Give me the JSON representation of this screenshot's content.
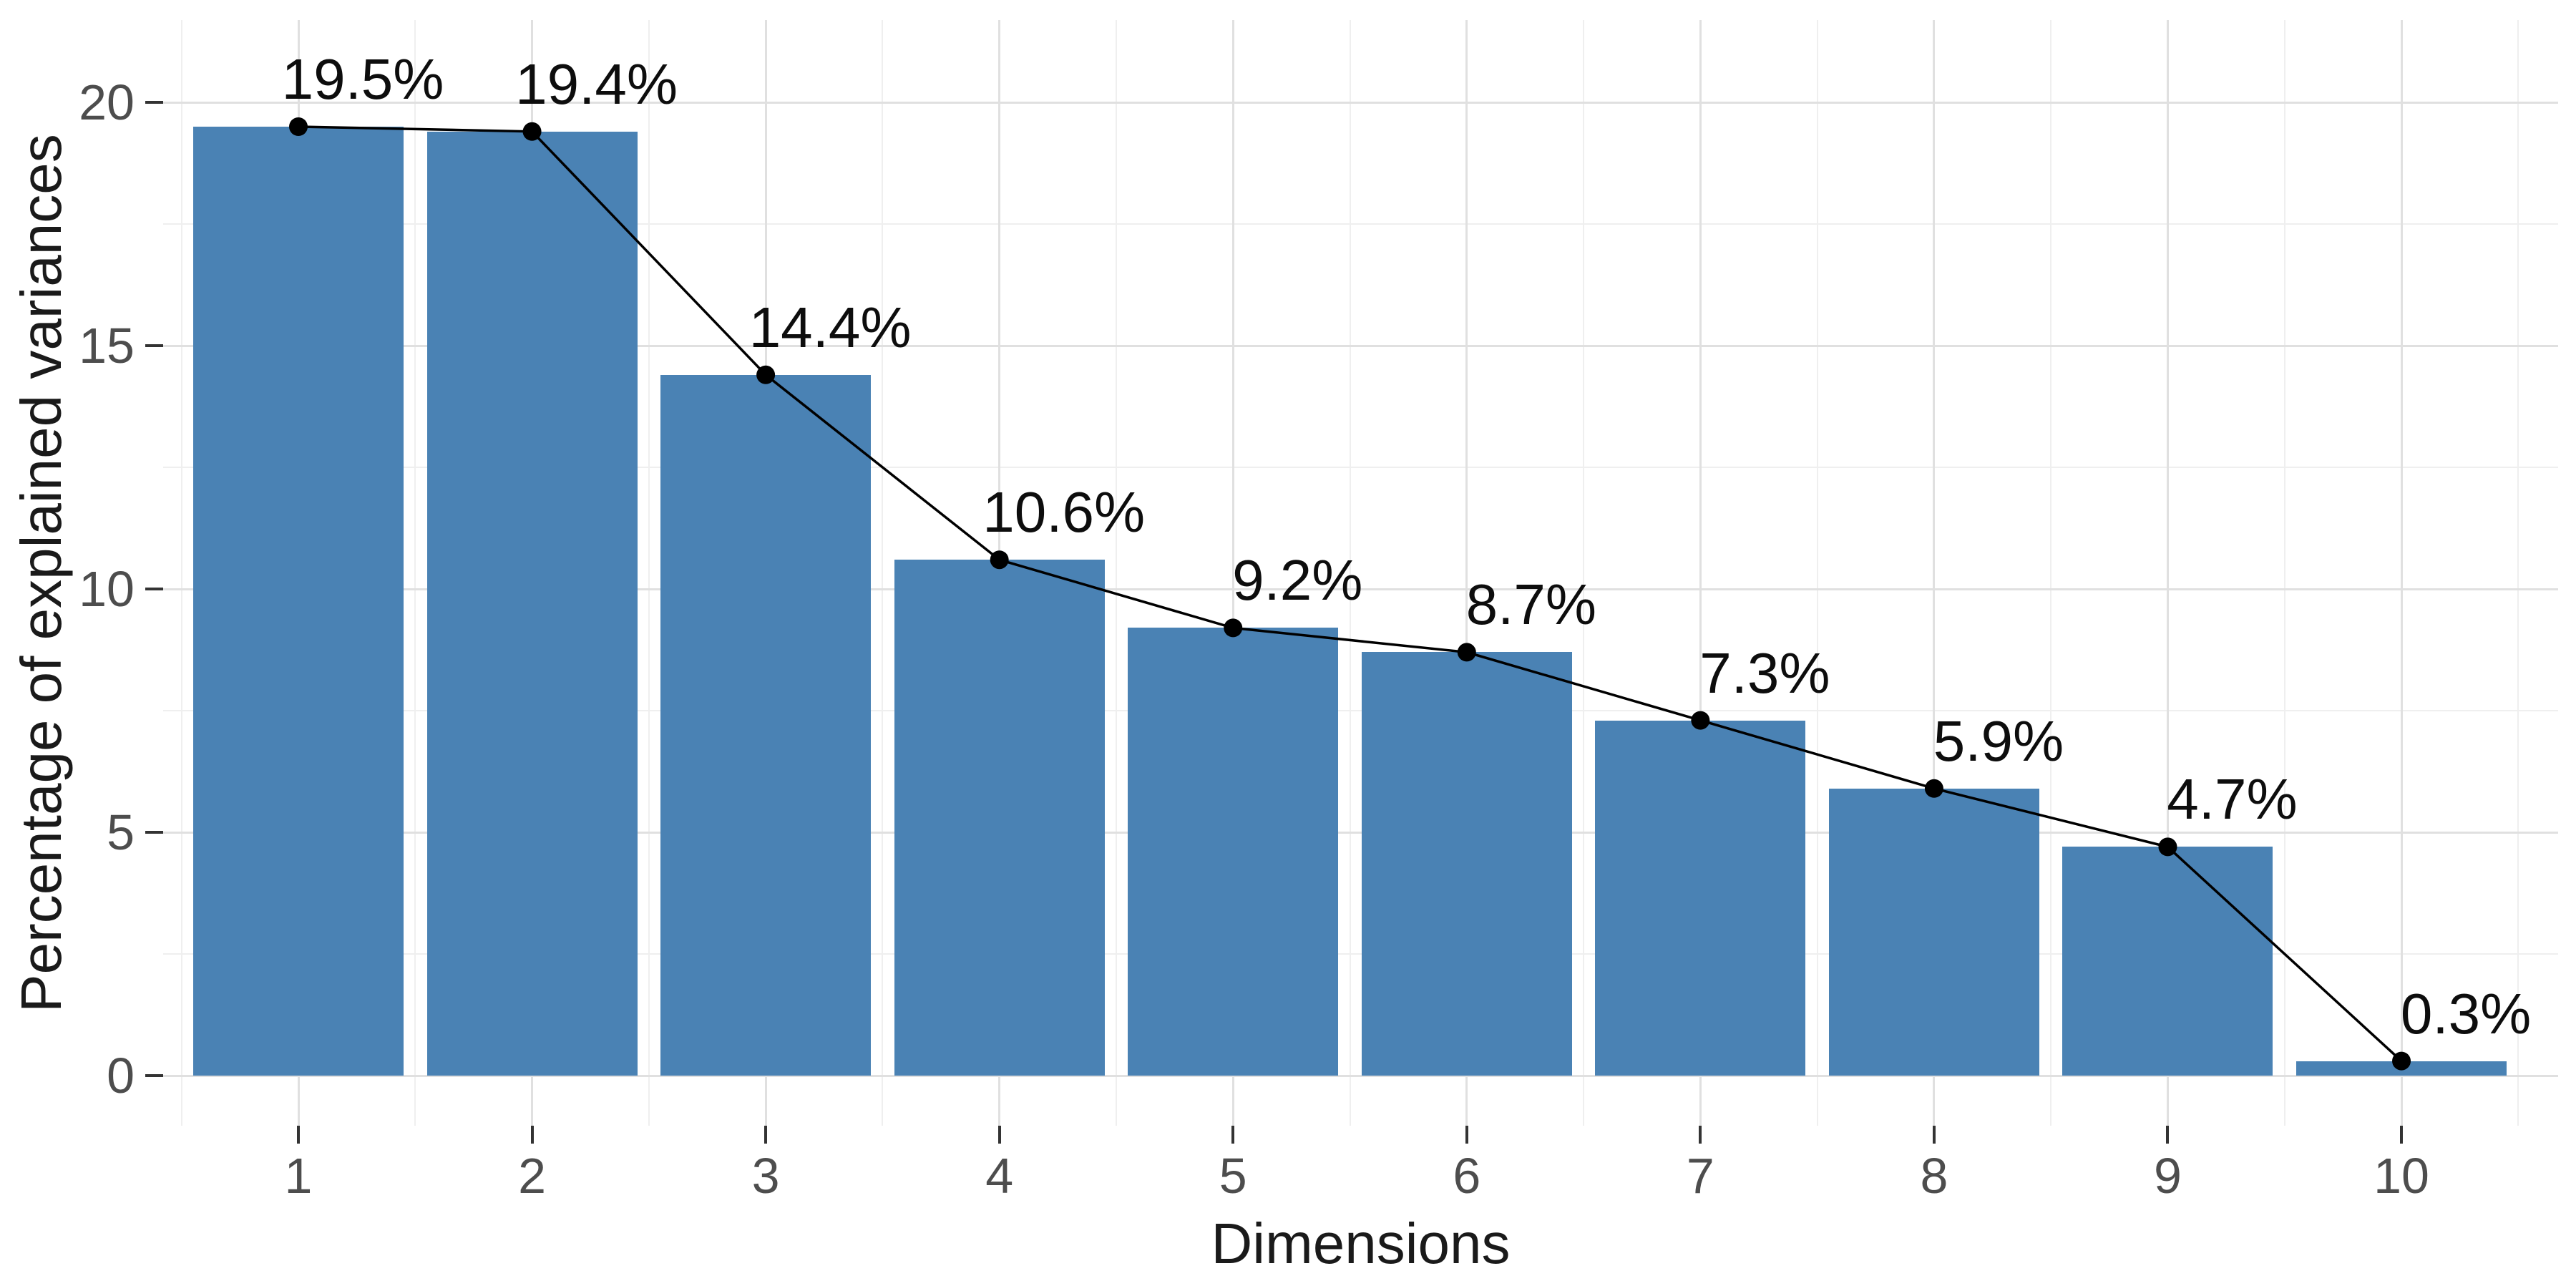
{
  "chart_data": {
    "type": "bar",
    "subtype": "scree-plot-with-line",
    "categories": [
      1,
      2,
      3,
      4,
      5,
      6,
      7,
      8,
      9,
      10
    ],
    "values": [
      19.5,
      19.4,
      14.4,
      10.6,
      9.2,
      8.7,
      7.3,
      5.9,
      4.7,
      0.3
    ],
    "point_labels": [
      "19.5%",
      "19.4%",
      "14.4%",
      "10.6%",
      "9.2%",
      "8.7%",
      "7.3%",
      "5.9%",
      "4.7%",
      "0.3%"
    ],
    "title": "",
    "xlabel": "Dimensions",
    "ylabel": "Percentage of explained variances",
    "y_ticks": [
      0,
      5,
      10,
      15,
      20
    ],
    "y_minor_ticks": [
      2.5,
      7.5,
      12.5,
      17.5
    ],
    "ylim": [
      0,
      20
    ],
    "grid": "major+minor, light gray on white",
    "legend_position": "none",
    "colors": {
      "bar_fill": "#4a82b4",
      "line": "#000000",
      "point": "#000000",
      "data_label": "#0d0d0d",
      "grid_major": "#e0e0e0",
      "grid_minor": "#efefef",
      "axis_text": "#4d4d4d",
      "axis_title": "#1a1a1a",
      "tick_mark": "#333333",
      "background": "#ffffff"
    }
  }
}
